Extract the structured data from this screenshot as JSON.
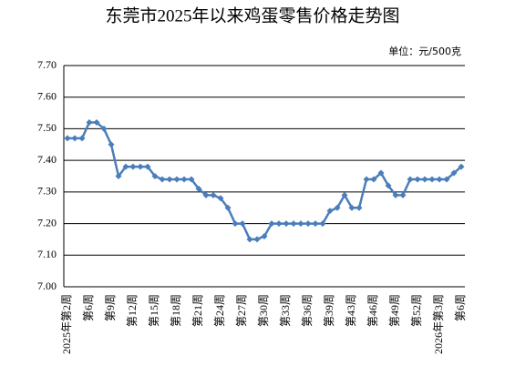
{
  "chart_data": {
    "type": "line",
    "title": "东莞市2025年以来鸡蛋零售价格走势图",
    "unit": "单位：元/500克",
    "categories": [
      "2025年第2周",
      null,
      null,
      "第6周",
      null,
      null,
      "第9周",
      null,
      null,
      "第12周",
      null,
      null,
      "第15周",
      null,
      null,
      "第18周",
      null,
      null,
      "第21周",
      null,
      null,
      "第24周",
      null,
      null,
      "第27周",
      null,
      null,
      "第30周",
      null,
      null,
      "第33周",
      null,
      null,
      "第36周",
      null,
      null,
      "第39周",
      null,
      null,
      "第43周",
      null,
      null,
      "第46周",
      null,
      null,
      "第49周",
      null,
      null,
      "第52周",
      null,
      null,
      "2026年第3周",
      null,
      null,
      "第6周"
    ],
    "values": [
      7.47,
      7.47,
      7.47,
      7.52,
      7.52,
      7.5,
      7.45,
      7.35,
      7.38,
      7.38,
      7.38,
      7.38,
      7.35,
      7.34,
      7.34,
      7.34,
      7.34,
      7.34,
      7.31,
      7.29,
      7.29,
      7.28,
      7.25,
      7.2,
      7.2,
      7.15,
      7.15,
      7.16,
      7.2,
      7.2,
      7.2,
      7.2,
      7.2,
      7.2,
      7.2,
      7.2,
      7.24,
      7.25,
      7.29,
      7.25,
      7.25,
      7.34,
      7.34,
      7.36,
      7.32,
      7.29,
      7.29,
      7.34,
      7.34,
      7.34,
      7.34,
      7.34,
      7.34,
      7.36,
      7.38
    ],
    "color": "#4a7ebb",
    "ylim": [
      7.0,
      7.7
    ],
    "yticks": [
      {
        "value": 7.0,
        "label": "7.00"
      },
      {
        "value": 7.1,
        "label": "7.10"
      },
      {
        "value": 7.2,
        "label": "7.20"
      },
      {
        "value": 7.3,
        "label": "7.30"
      },
      {
        "value": 7.4,
        "label": "7.40"
      },
      {
        "value": 7.5,
        "label": "7.50"
      },
      {
        "value": 7.6,
        "label": "7.60"
      },
      {
        "value": 7.7,
        "label": "7.70"
      }
    ],
    "grid": true
  }
}
